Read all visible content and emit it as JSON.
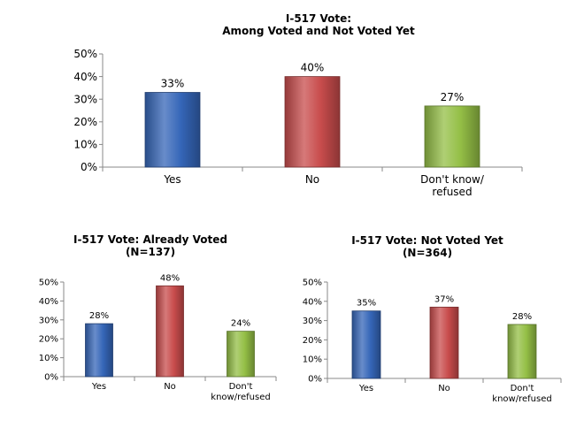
{
  "chart_data": [
    {
      "type": "bar",
      "title": "I-517 Vote:\nAmong Voted and Not Voted Yet",
      "categories": [
        [
          "Yes"
        ],
        [
          "No"
        ],
        [
          "Don't know/",
          "refused"
        ]
      ],
      "values": [
        33,
        40,
        27
      ],
      "value_labels": [
        "33%",
        "40%",
        "27%"
      ],
      "ylim": [
        0,
        50
      ],
      "yticks": [
        "0%",
        "10%",
        "20%",
        "30%",
        "40%",
        "50%"
      ],
      "colors": [
        "#3566b8",
        "#c84c4c",
        "#94bf46"
      ],
      "grid": false
    },
    {
      "type": "bar",
      "title": "I-517 Vote:  Already Voted\n(N=137)",
      "categories": [
        [
          "Yes"
        ],
        [
          "No"
        ],
        [
          "Don't",
          "know/refused"
        ]
      ],
      "values": [
        28,
        48,
        24
      ],
      "value_labels": [
        "28%",
        "48%",
        "24%"
      ],
      "ylim": [
        0,
        50
      ],
      "yticks": [
        "0%",
        "10%",
        "20%",
        "30%",
        "40%",
        "50%"
      ],
      "colors": [
        "#3566b8",
        "#c84c4c",
        "#94bf46"
      ],
      "grid": false
    },
    {
      "type": "bar",
      "title": "I-517 Vote:  Not Voted Yet\n(N=364)",
      "categories": [
        [
          "Yes"
        ],
        [
          "No"
        ],
        [
          "Don't",
          "know/refused"
        ]
      ],
      "values": [
        35,
        37,
        28
      ],
      "value_labels": [
        "35%",
        "37%",
        "28%"
      ],
      "ylim": [
        0,
        50
      ],
      "yticks": [
        "0%",
        "10%",
        "20%",
        "30%",
        "40%",
        "50%"
      ],
      "colors": [
        "#3566b8",
        "#c84c4c",
        "#94bf46"
      ],
      "grid": false
    }
  ]
}
